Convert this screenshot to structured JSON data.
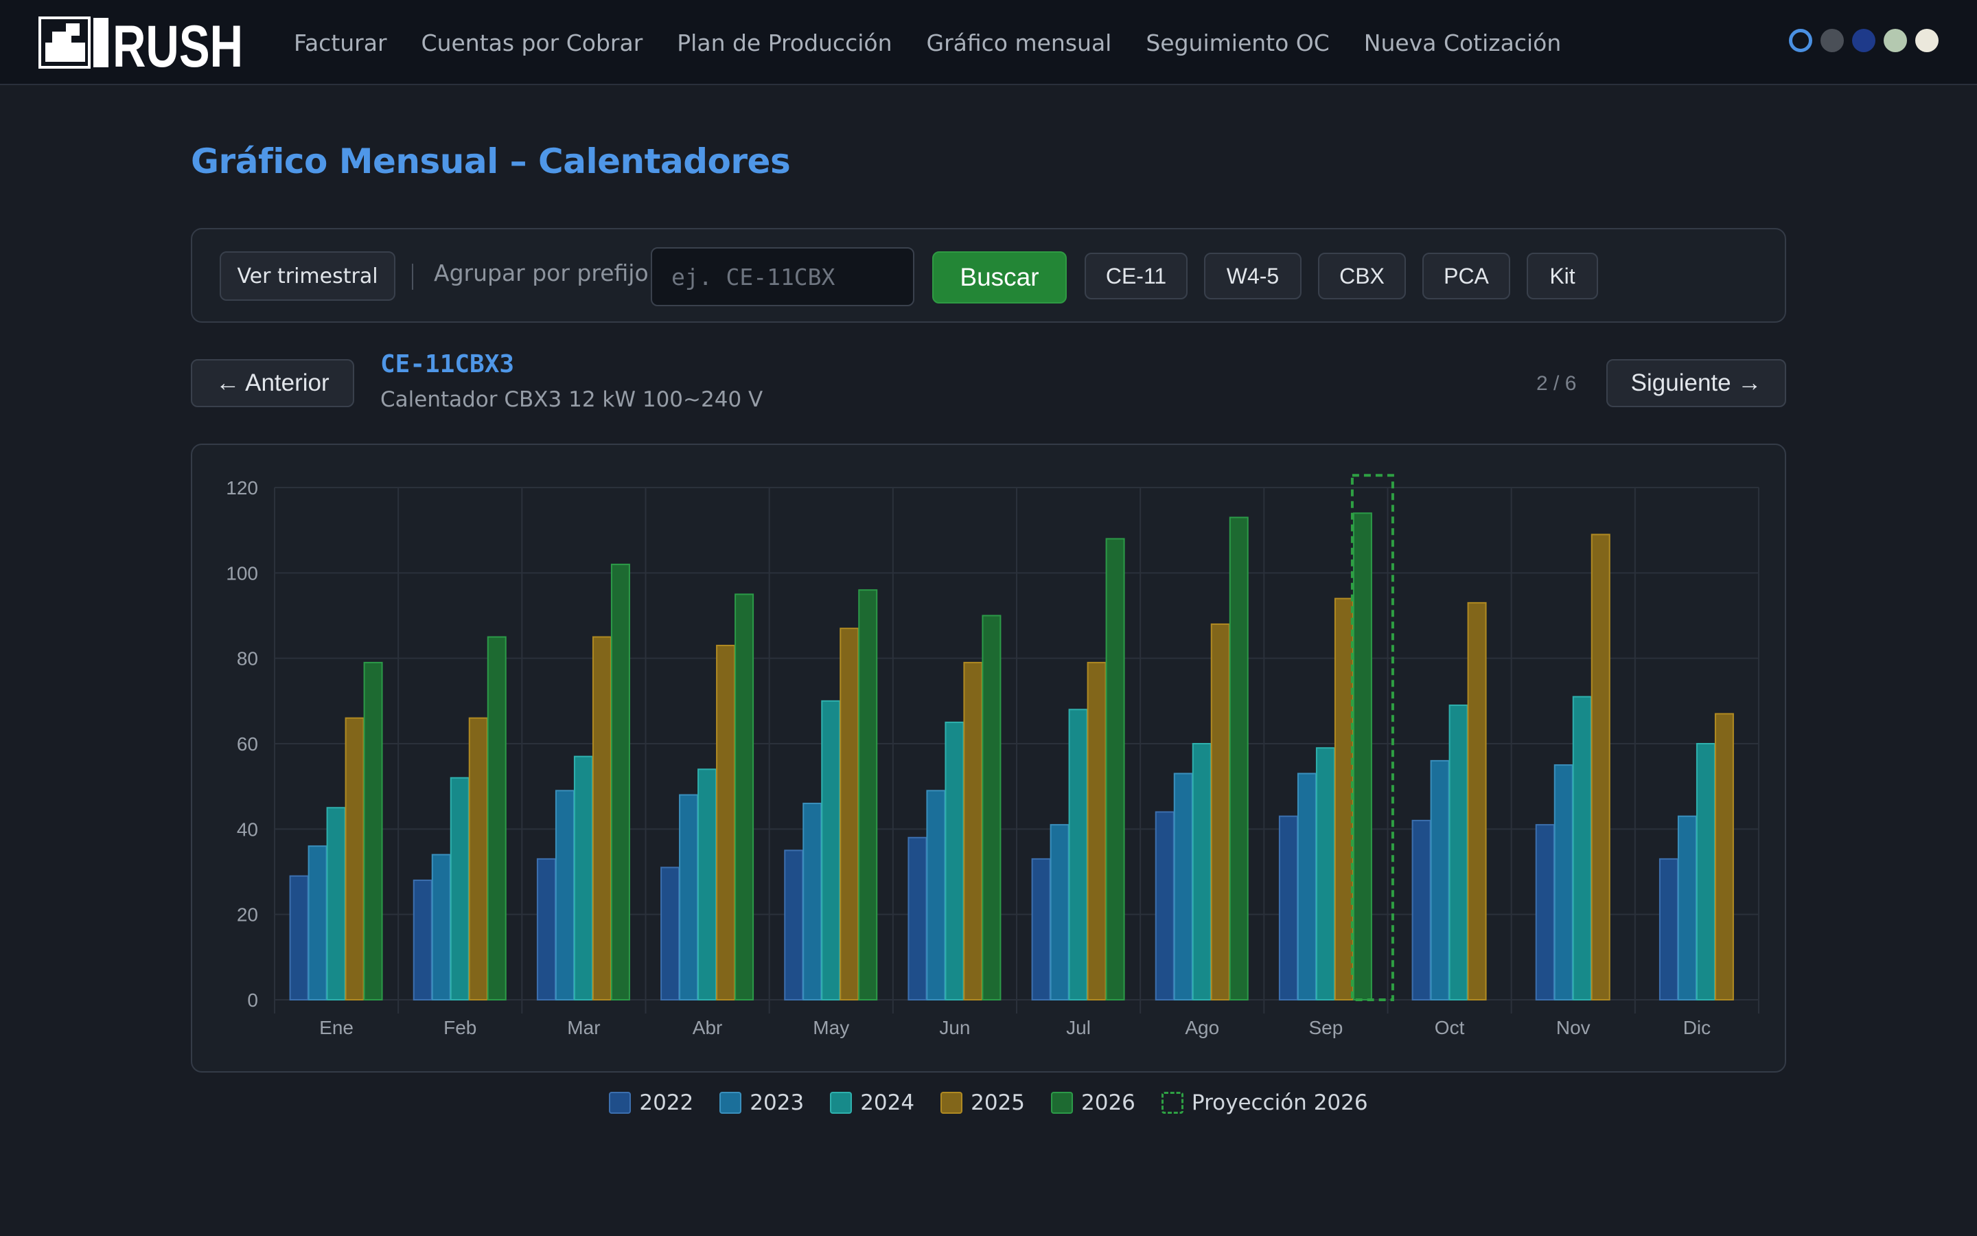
{
  "brand": {
    "name": "RUSH"
  },
  "nav": {
    "items": [
      {
        "label": "Facturar"
      },
      {
        "label": "Cuentas por Cobrar"
      },
      {
        "label": "Plan de Producción"
      },
      {
        "label": "Gráfico mensual"
      },
      {
        "label": "Seguimiento OC"
      },
      {
        "label": "Nueva Cotización"
      }
    ]
  },
  "theme_dots": [
    "#1f6feb",
    "#4a4f57",
    "#1e3a8a",
    "#b4c9b0",
    "#ebe8dc"
  ],
  "page": {
    "title": "Gráfico Mensual – Calentadores"
  },
  "filters": {
    "quarterly_label": "Ver trimestral",
    "group_label": "Agrupar por prefijo:",
    "prefix_placeholder": "ej. CE-11CBX",
    "prefix_value": "",
    "search_label": "Buscar",
    "chips": [
      "CE-11",
      "W4-5",
      "CBX",
      "PCA",
      "Kit"
    ]
  },
  "product": {
    "prev_label": "← Anterior",
    "next_label": "Siguiente →",
    "code": "CE-11CBX3",
    "description": "Calentador CBX3 12 kW 100~240 V",
    "pager": "2 / 6"
  },
  "chart_data": {
    "type": "bar",
    "title": "",
    "xlabel": "",
    "ylabel": "",
    "ylim": [
      0,
      120
    ],
    "yticks": [
      0,
      20,
      40,
      60,
      80,
      100,
      120
    ],
    "grid": true,
    "legend_position": "bottom-center",
    "categories": [
      "Ene",
      "Feb",
      "Mar",
      "Abr",
      "May",
      "Jun",
      "Jul",
      "Ago",
      "Sep",
      "Oct",
      "Nov",
      "Dic"
    ],
    "series": [
      {
        "name": "2022",
        "color": "#1f4e8a",
        "border": "#3c6fae",
        "values": [
          29,
          28,
          33,
          31,
          35,
          38,
          33,
          44,
          43,
          42,
          41,
          33
        ]
      },
      {
        "name": "2023",
        "color": "#1b6f9a",
        "border": "#3a8fbc",
        "values": [
          36,
          34,
          49,
          48,
          46,
          49,
          41,
          53,
          53,
          56,
          55,
          43
        ]
      },
      {
        "name": "2024",
        "color": "#178a8a",
        "border": "#2fb0ad",
        "values": [
          45,
          52,
          57,
          54,
          70,
          65,
          68,
          60,
          59,
          69,
          71,
          60
        ]
      },
      {
        "name": "2025",
        "color": "#82661a",
        "border": "#b08a22",
        "values": [
          66,
          66,
          85,
          83,
          87,
          79,
          79,
          88,
          94,
          93,
          109,
          67
        ]
      },
      {
        "name": "2026",
        "color": "#1d6a31",
        "border": "#2c9a48",
        "values": [
          79,
          85,
          102,
          95,
          96,
          90,
          108,
          113,
          114,
          null,
          null,
          null
        ]
      }
    ],
    "projection": {
      "name": "Proyección 2026",
      "color": "#2ea043",
      "category": "Sep",
      "value": 114
    }
  }
}
